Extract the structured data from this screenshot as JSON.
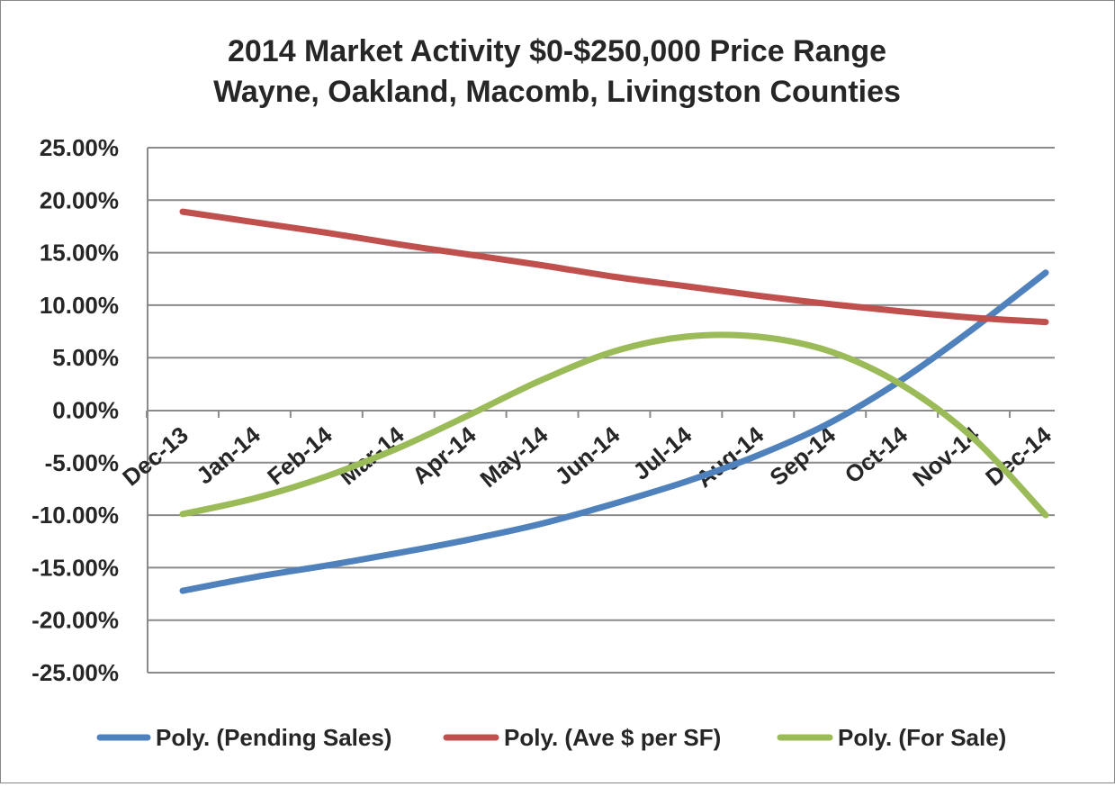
{
  "chart_data": {
    "type": "line",
    "title": "2014 Market Activity $0-$250,000 Price Range",
    "subtitle": "Wayne, Oakland, Macomb, Livingston Counties",
    "xlabel": "",
    "ylabel": "",
    "categories": [
      "Dec-13",
      "Jan-14",
      "Feb-14",
      "Mar-14",
      "Apr-14",
      "May-14",
      "Jun-14",
      "Jul-14",
      "Aug-14",
      "Sep-14",
      "Oct-14",
      "Nov-14",
      "Dec-14"
    ],
    "ylim": [
      -25,
      25
    ],
    "yticks": [
      25,
      20,
      15,
      10,
      5,
      0,
      -5,
      -10,
      -15,
      -20,
      -25
    ],
    "ytick_labels": [
      "25.00%",
      "20.00%",
      "15.00%",
      "10.00%",
      "5.00%",
      "0.00%",
      "-5.00%",
      "-10.00%",
      "-15.00%",
      "-20.00%",
      "-25.00%"
    ],
    "grid": true,
    "legend_position": "bottom",
    "series": [
      {
        "name": "Poly. (Pending Sales)",
        "color": "#4f81bd",
        "values": [
          -17.2,
          -15.9,
          -14.8,
          -13.6,
          -12.3,
          -10.8,
          -8.9,
          -6.8,
          -4.3,
          -1.2,
          2.9,
          7.8,
          13.1
        ]
      },
      {
        "name": "Poly. (Ave $ per SF)",
        "color": "#c0504d",
        "values": [
          18.9,
          17.9,
          16.9,
          15.8,
          14.8,
          13.8,
          12.7,
          11.8,
          10.9,
          10.1,
          9.4,
          8.8,
          8.4
        ]
      },
      {
        "name": "Poly. (For Sale)",
        "color": "#9bbb59",
        "values": [
          -9.9,
          -8.4,
          -6.3,
          -3.6,
          -0.4,
          2.9,
          5.6,
          7.0,
          7.0,
          5.6,
          2.4,
          -2.7,
          -10.0
        ]
      }
    ]
  }
}
